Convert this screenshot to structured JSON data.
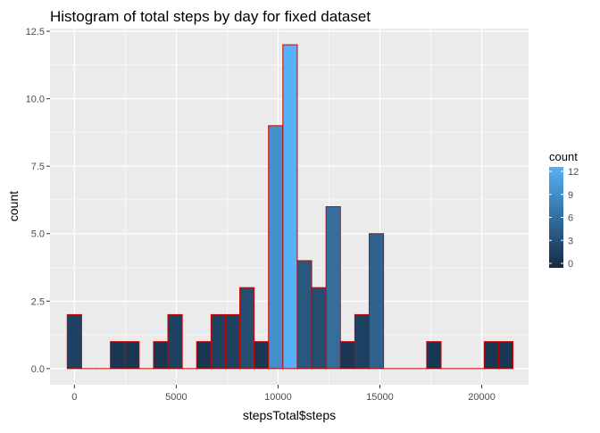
{
  "chart_data": {
    "type": "bar",
    "title": "Histogram of total steps by day for fixed dataset",
    "xlabel": "stepsTotal$steps",
    "ylabel": "count",
    "xlim": [
      -1200,
      22300
    ],
    "ylim": [
      -0.6,
      12.6
    ],
    "x_ticks": [
      0,
      5000,
      10000,
      15000,
      20000
    ],
    "x_tick_labels": [
      "0",
      "5000",
      "10000",
      "15000",
      "20000"
    ],
    "y_ticks": [
      0,
      2.5,
      5,
      7.5,
      10,
      12.5
    ],
    "y_tick_labels": [
      "0.0",
      "2.5",
      "5.0",
      "7.5",
      "10.0",
      "12.5"
    ],
    "bin_width": 706,
    "bin_centers": [
      0,
      706,
      1412,
      2118,
      2824,
      3530,
      4236,
      4942,
      5648,
      6354,
      7060,
      7766,
      8472,
      9178,
      9884,
      10590,
      11296,
      12002,
      12708,
      13414,
      14120,
      14826,
      15532,
      16238,
      16944,
      17650,
      18356,
      19062,
      19768,
      20474,
      21180
    ],
    "values": [
      2,
      0,
      0,
      1,
      1,
      0,
      1,
      2,
      0,
      1,
      2,
      2,
      3,
      1,
      9,
      12,
      4,
      3,
      6,
      1,
      2,
      5,
      0,
      0,
      0,
      1,
      0,
      0,
      0,
      1,
      1
    ],
    "bar_outline_color": "#cc0000",
    "fill_scale": {
      "low": "#132b43",
      "high": "#56b1f7",
      "min": 0,
      "max": 12
    },
    "legend": {
      "title": "count",
      "position": "right",
      "ticks": [
        0,
        3,
        6,
        9,
        12
      ],
      "tick_labels": [
        "0",
        "3",
        "6",
        "9",
        "12"
      ]
    },
    "grid": true,
    "panel_background": "#ebebeb",
    "grid_color": "#ffffff"
  }
}
